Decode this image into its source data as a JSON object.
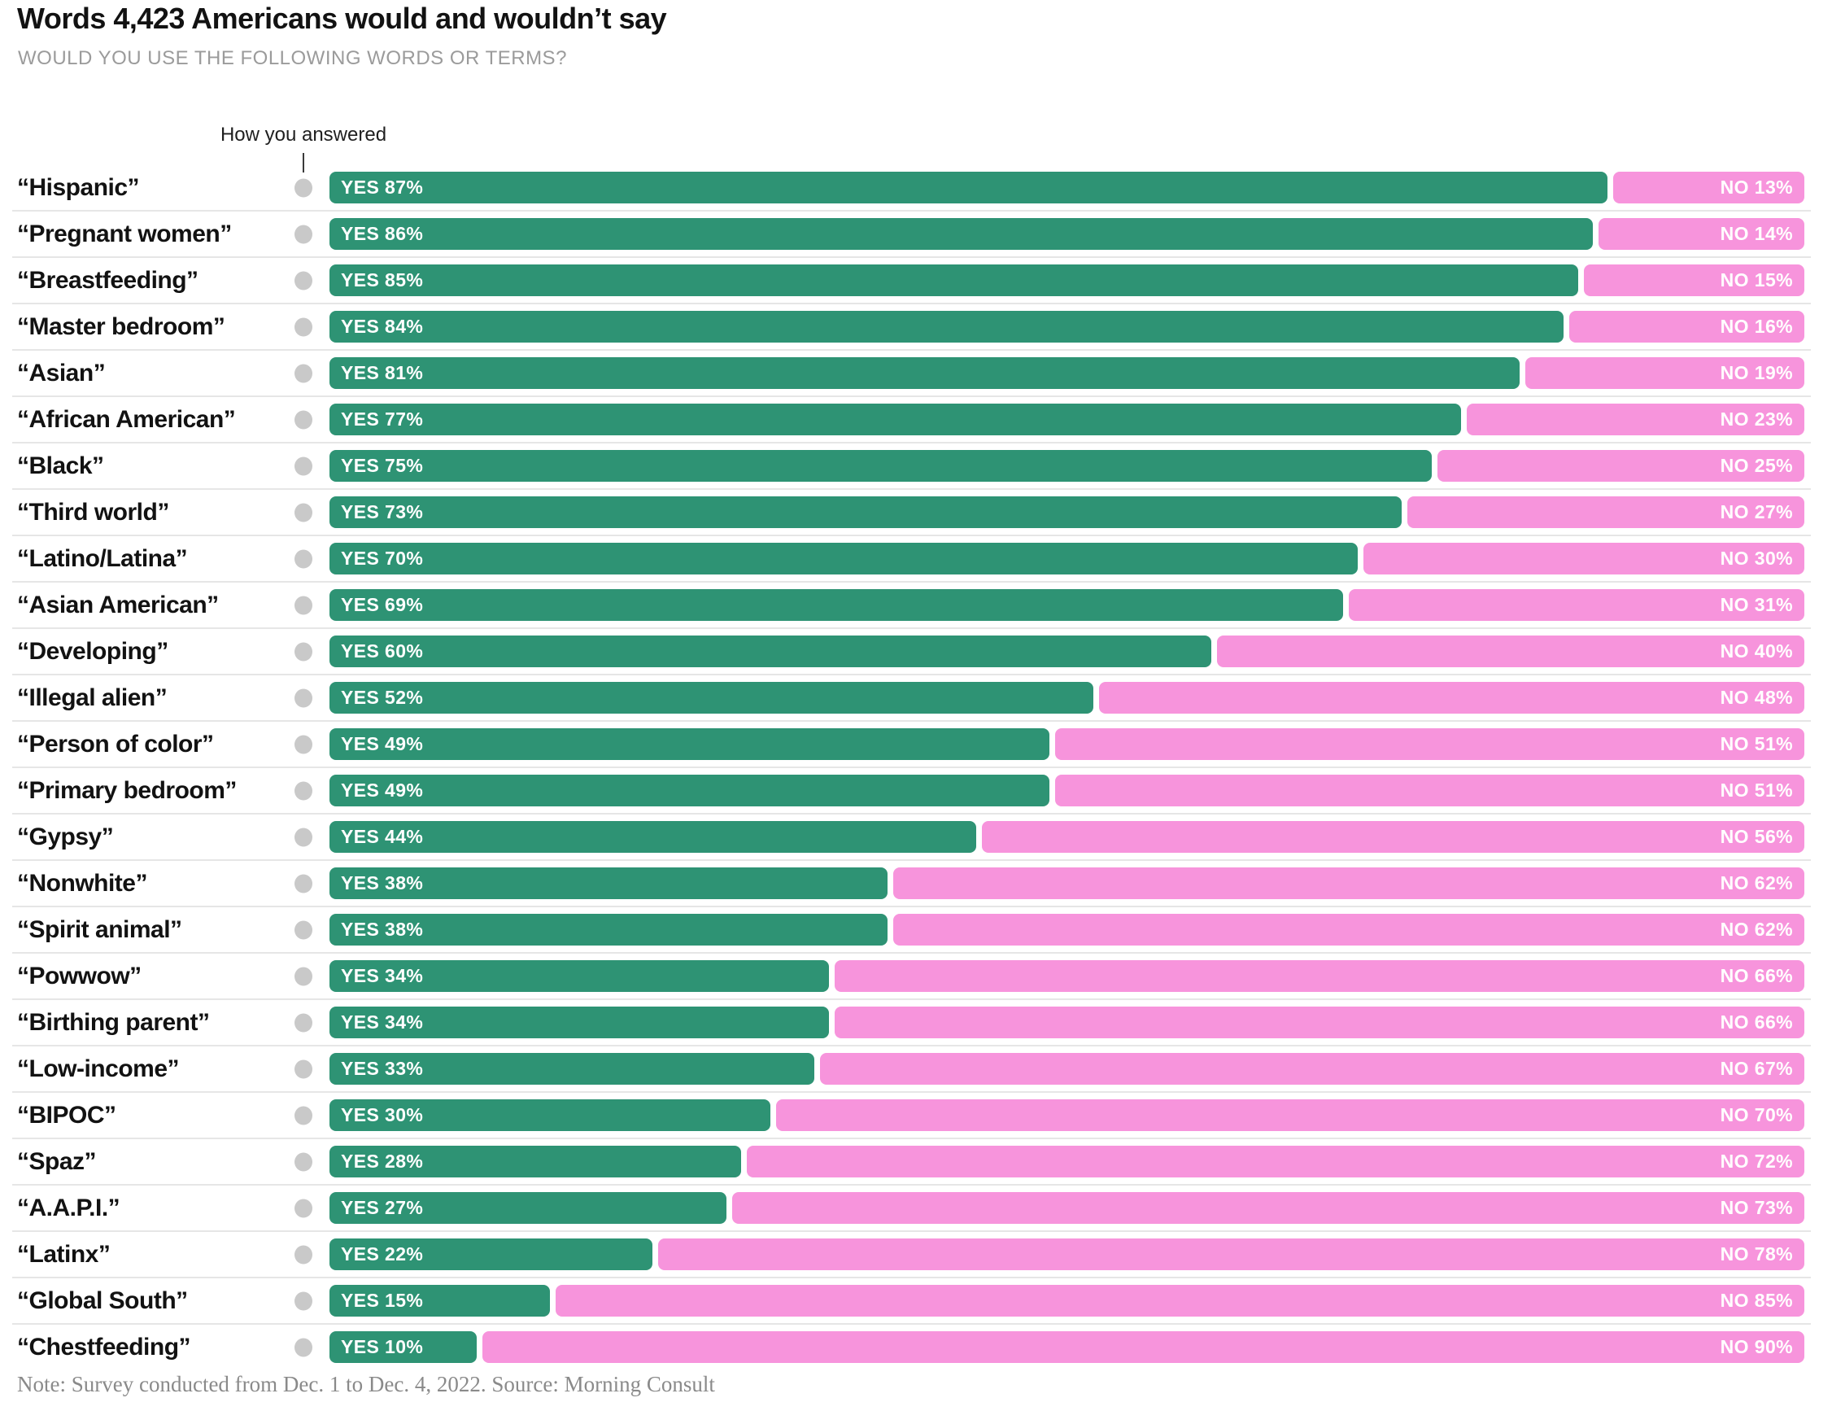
{
  "header": {
    "title": "Words 4,423 Americans would and wouldn’t say",
    "subtitle": "WOULD YOU USE THE FOLLOWING WORDS OR TERMS?"
  },
  "annotation": {
    "label": "How you answered",
    "marker": "gray-dot"
  },
  "footer": {
    "note": "Note: Survey conducted from Dec. 1 to Dec. 4, 2022. Source: Morning Consult"
  },
  "colors": {
    "yes": "#2e9374",
    "no": "#f794dc",
    "dot": "#c9c9c9",
    "separator": "#e6e6e6",
    "title_text": "#121212",
    "subtitle_text": "#9b9b9b",
    "note_text": "#8a8a8a",
    "bar_text": "#ffffff"
  },
  "chart_data": {
    "type": "bar",
    "orientation": "horizontal",
    "stacked": true,
    "title": "Words 4,423 Americans would and wouldn’t say",
    "question": "WOULD YOU USE THE FOLLOWING WORDS OR TERMS?",
    "value_unit": "%",
    "axis_range": [
      0,
      100
    ],
    "grid": false,
    "legend_position": "none",
    "series": [
      {
        "name": "YES",
        "color": "#2e9374"
      },
      {
        "name": "NO",
        "color": "#f794dc"
      }
    ],
    "categories": [
      "“Hispanic”",
      "“Pregnant women”",
      "“Breastfeeding”",
      "“Master bedroom”",
      "“Asian”",
      "“African American”",
      "“Black”",
      "“Third world”",
      "“Latino/Latina”",
      "“Asian American”",
      "“Developing”",
      "“Illegal alien”",
      "“Person of color”",
      "“Primary bedroom”",
      "“Gypsy”",
      "“Nonwhite”",
      "“Spirit animal”",
      "“Powwow”",
      "“Birthing parent”",
      "“Low-income”",
      "“BIPOC”",
      "“Spaz”",
      "“A.A.P.I.”",
      "“Latinx”",
      "“Global South”",
      "“Chestfeeding”"
    ],
    "rows": [
      {
        "term": "“Hispanic”",
        "yes": 87,
        "no": 13
      },
      {
        "term": "“Pregnant women”",
        "yes": 86,
        "no": 14
      },
      {
        "term": "“Breastfeeding”",
        "yes": 85,
        "no": 15
      },
      {
        "term": "“Master bedroom”",
        "yes": 84,
        "no": 16
      },
      {
        "term": "“Asian”",
        "yes": 81,
        "no": 19
      },
      {
        "term": "“African American”",
        "yes": 77,
        "no": 23
      },
      {
        "term": "“Black”",
        "yes": 75,
        "no": 25
      },
      {
        "term": "“Third world”",
        "yes": 73,
        "no": 27
      },
      {
        "term": "“Latino/Latina”",
        "yes": 70,
        "no": 30
      },
      {
        "term": "“Asian American”",
        "yes": 69,
        "no": 31
      },
      {
        "term": "“Developing”",
        "yes": 60,
        "no": 40
      },
      {
        "term": "“Illegal alien”",
        "yes": 52,
        "no": 48
      },
      {
        "term": "“Person of color”",
        "yes": 49,
        "no": 51
      },
      {
        "term": "“Primary bedroom”",
        "yes": 49,
        "no": 51
      },
      {
        "term": "“Gypsy”",
        "yes": 44,
        "no": 56
      },
      {
        "term": "“Nonwhite”",
        "yes": 38,
        "no": 62
      },
      {
        "term": "“Spirit animal”",
        "yes": 38,
        "no": 62
      },
      {
        "term": "“Powwow”",
        "yes": 34,
        "no": 66
      },
      {
        "term": "“Birthing parent”",
        "yes": 34,
        "no": 66
      },
      {
        "term": "“Low-income”",
        "yes": 33,
        "no": 67
      },
      {
        "term": "“BIPOC”",
        "yes": 30,
        "no": 70
      },
      {
        "term": "“Spaz”",
        "yes": 28,
        "no": 72
      },
      {
        "term": "“A.A.P.I.”",
        "yes": 27,
        "no": 73
      },
      {
        "term": "“Latinx”",
        "yes": 22,
        "no": 78
      },
      {
        "term": "“Global South”",
        "yes": 15,
        "no": 85
      },
      {
        "term": "“Chestfeeding”",
        "yes": 10,
        "no": 90
      }
    ]
  }
}
